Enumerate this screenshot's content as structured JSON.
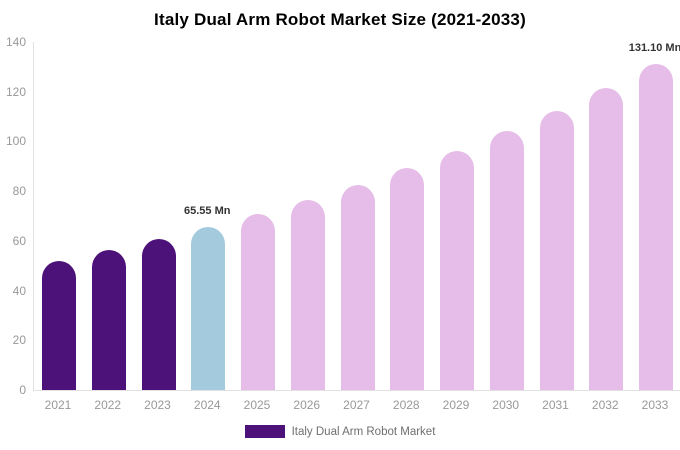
{
  "chart_data": {
    "type": "bar",
    "title": "Italy Dual Arm Robot Market Size (2021-2033)",
    "categories": [
      "2021",
      "2022",
      "2023",
      "2024",
      "2025",
      "2026",
      "2027",
      "2028",
      "2029",
      "2030",
      "2031",
      "2032",
      "2033"
    ],
    "values": [
      52.04,
      56.2,
      60.69,
      65.55,
      70.79,
      76.46,
      82.57,
      89.18,
      96.31,
      104.02,
      112.34,
      121.32,
      131.1
    ],
    "unit": "Mn",
    "xlabel": "",
    "ylabel": "",
    "ylim": [
      0,
      140
    ],
    "yticks": [
      0,
      20,
      40,
      60,
      80,
      100,
      120,
      140
    ],
    "grid": false,
    "legend_position": "bottom",
    "bar_colors": [
      "#4D1279",
      "#4D1279",
      "#4D1279",
      "#A4CBDD",
      "#E5BDE8",
      "#E5BDE8",
      "#E5BDE8",
      "#E5BDE8",
      "#E5BDE8",
      "#E5BDE8",
      "#E5BDE8",
      "#E5BDE8",
      "#E5BDE8"
    ],
    "data_labels": [
      {
        "index": 3,
        "text": "65.55 Mn"
      },
      {
        "index": 12,
        "text": "131.10 Mn"
      }
    ],
    "legend": [
      {
        "label": "Italy Dual Arm Robot Market",
        "color": "#4D1279"
      }
    ]
  },
  "colors": {
    "background": "#FFFFFF",
    "axis_line": "#E1E1E1",
    "tick_label": "#999999",
    "title": "#000000",
    "data_label": "#333333",
    "legend_label": "#6F6F6F",
    "historical_bar": "#4D1279",
    "current_year_bar": "#A4CBDD",
    "forecast_bar": "#E5BDE8"
  }
}
